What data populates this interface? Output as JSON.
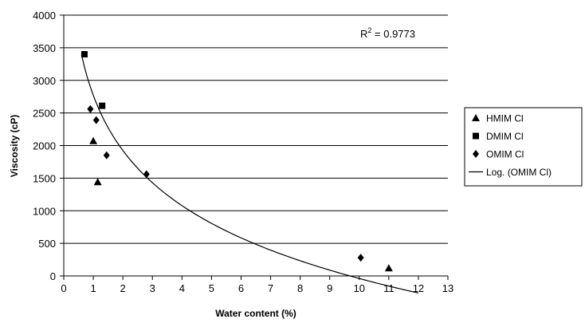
{
  "chart_data": {
    "type": "scatter",
    "title": "",
    "xlabel": "Water content (%)",
    "ylabel": "Viscosity (cP)",
    "xlim": [
      0,
      13
    ],
    "ylim": [
      0,
      4000
    ],
    "x_ticks": [
      "0",
      "1",
      "2",
      "3",
      "4",
      "5",
      "6",
      "7",
      "8",
      "9",
      "10",
      "11",
      "12",
      "13"
    ],
    "y_ticks": [
      "0",
      "500",
      "1000",
      "1500",
      "2000",
      "2500",
      "3000",
      "3500",
      "4000"
    ],
    "grid": "horizontal",
    "legend_position": "right",
    "annotation": {
      "prefix": "R",
      "sup": "2",
      "suffix": " = 0.9773"
    },
    "series": [
      {
        "name": "HMIM Cl",
        "marker": "triangle",
        "points": [
          [
            1.0,
            2070
          ],
          [
            1.15,
            1440
          ],
          [
            11.0,
            120
          ]
        ]
      },
      {
        "name": "DMIM Cl",
        "marker": "square",
        "points": [
          [
            0.7,
            3400
          ],
          [
            1.3,
            2610
          ]
        ]
      },
      {
        "name": "OMIM Cl",
        "marker": "diamond",
        "points": [
          [
            0.9,
            2560
          ],
          [
            1.1,
            2390
          ],
          [
            1.45,
            1850
          ],
          [
            2.8,
            1560
          ],
          [
            10.05,
            280
          ]
        ]
      },
      {
        "name": "Log. (OMIM Cl)",
        "marker": "line",
        "trendline": {
          "type": "log",
          "a": -1220,
          "b": 2770,
          "x_range": [
            0.6,
            12
          ]
        }
      }
    ]
  }
}
